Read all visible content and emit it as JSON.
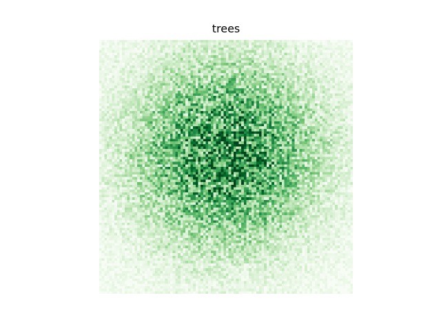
{
  "chart_data": {
    "type": "heatmap",
    "title": "trees",
    "colormap": "Greens",
    "grid_size": [
      100,
      100
    ],
    "value_range": [
      0,
      1
    ],
    "distribution": "radial-noise",
    "dense_center": [
      0.5,
      0.45
    ],
    "axes_visible": false,
    "colorbar": false
  }
}
